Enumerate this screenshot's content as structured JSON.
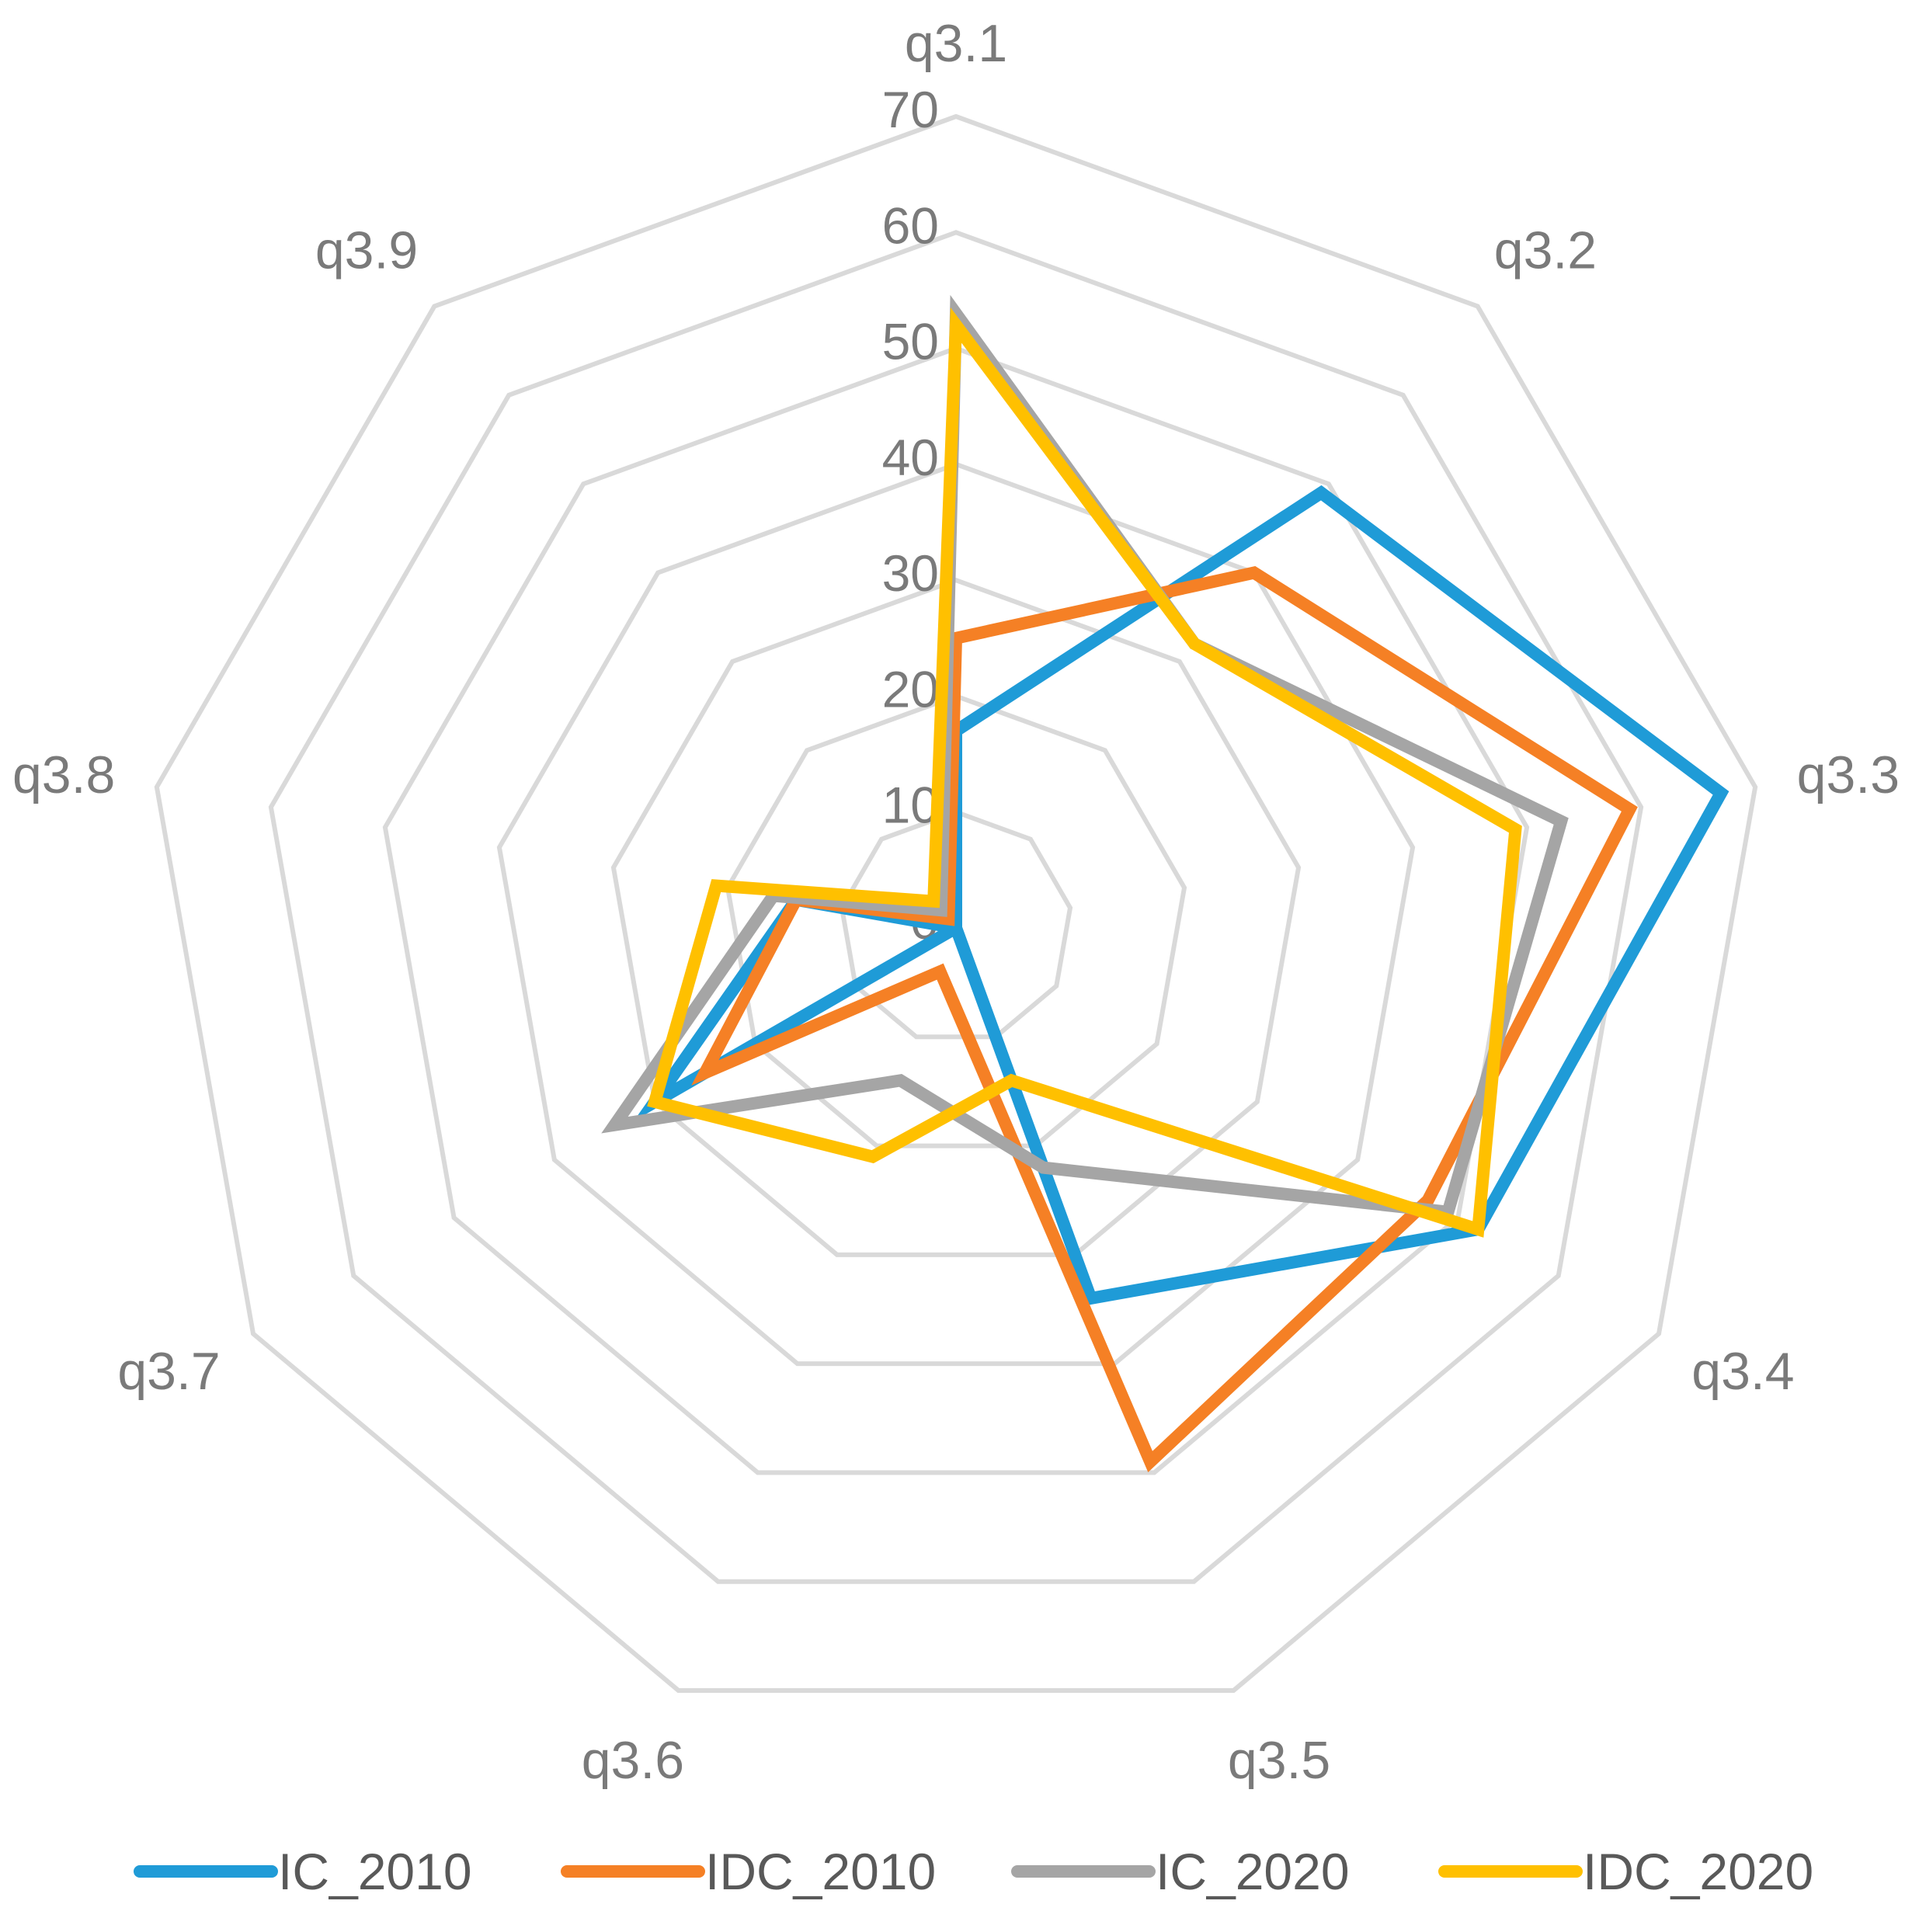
{
  "chart_data": {
    "type": "radar",
    "title": "",
    "categories": [
      "q3.1",
      "q3.2",
      "q3.3",
      "q3.4",
      "q3.5",
      "q3.6",
      "q3.7",
      "q3.8",
      "q3.9"
    ],
    "rlim": [
      0,
      70
    ],
    "ticks": [
      "0",
      "10",
      "20",
      "30",
      "40",
      "50",
      "60",
      "70"
    ],
    "grid": true,
    "legend_position": "bottom",
    "series": [
      {
        "name": "IC_2010",
        "color": "#1f9bd7",
        "values": [
          17,
          49,
          67,
          52,
          34,
          0,
          30,
          14,
          0
        ]
      },
      {
        "name": "IDC_2010",
        "color": "#f58025",
        "values": [
          25,
          40,
          59,
          47,
          49,
          4,
          25,
          14,
          1
        ]
      },
      {
        "name": "IC_2020",
        "color": "#a5a5a5",
        "values": [
          53,
          32,
          53,
          49,
          22,
          14,
          34,
          16,
          2
        ]
      },
      {
        "name": "IDC_2020",
        "color": "#ffc000",
        "values": [
          52,
          32,
          49,
          52,
          14,
          21,
          30,
          21,
          3
        ]
      }
    ]
  }
}
